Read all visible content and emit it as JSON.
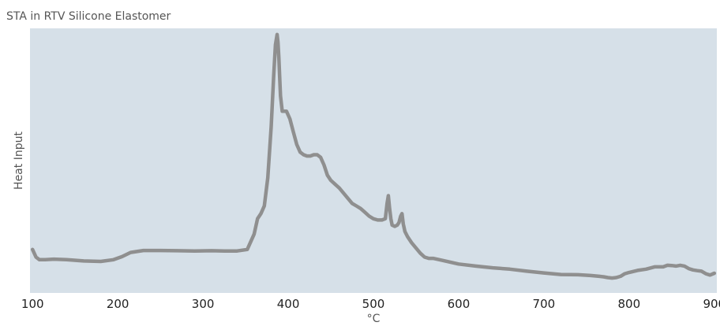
{
  "chart_data": {
    "type": "line",
    "title": "STA in RTV Silicone Elastomer",
    "xlabel": "°C",
    "ylabel": "Heat Input",
    "xlim": [
      97,
      903
    ],
    "ylim": [
      0,
      100
    ],
    "x_ticks": [
      100,
      200,
      300,
      400,
      500,
      600,
      700,
      800,
      900
    ],
    "y_ticks_shown": false,
    "grid": false,
    "plot_background": "#d6e0e8",
    "line_color": "#8f8f8f",
    "series": [
      {
        "x": [
          100,
          104,
          108,
          115,
          125,
          140,
          160,
          180,
          195,
          205,
          215,
          230,
          250,
          270,
          290,
          310,
          325,
          340,
          352,
          360,
          364,
          368,
          372,
          376,
          380,
          383,
          385,
          387,
          388,
          389,
          390,
          391,
          393,
          395,
          398,
          402,
          406,
          410,
          414,
          418,
          422,
          426,
          430,
          434,
          438,
          442,
          446,
          450,
          455,
          460,
          465,
          470,
          475,
          480,
          485,
          490,
          495,
          500,
          505,
          510,
          514,
          516,
          517.5,
          519,
          520.5,
          522,
          525,
          528,
          530,
          532,
          533.5,
          535,
          537,
          540,
          545,
          550,
          555,
          560,
          565,
          570,
          580,
          600,
          620,
          640,
          660,
          680,
          700,
          720,
          740,
          755,
          765,
          770,
          775,
          780,
          785,
          790,
          795,
          800,
          810,
          820,
          830,
          840,
          845,
          850,
          855,
          860,
          865,
          870,
          875,
          880,
          885,
          890,
          895,
          900
        ],
        "y": [
          17,
          14,
          13,
          13,
          13.2,
          13,
          12.5,
          12.3,
          13,
          14.2,
          15.8,
          16.6,
          16.6,
          16.5,
          16.4,
          16.5,
          16.4,
          16.4,
          17,
          23,
          29,
          31,
          34,
          45,
          65,
          85,
          97,
          101,
          98,
          92,
          84,
          77,
          71,
          71,
          71,
          68,
          63,
          58,
          55,
          54,
          53.5,
          53.5,
          54,
          54,
          53,
          50,
          46,
          44,
          42.5,
          41,
          39,
          37,
          35,
          34,
          33,
          31.5,
          30,
          29,
          28.5,
          28.5,
          29,
          35,
          38,
          33,
          29,
          26.5,
          26,
          26.5,
          27.5,
          30,
          31,
          27,
          24,
          22,
          19.5,
          17.5,
          15.5,
          14,
          13.5,
          13.5,
          12.8,
          11.3,
          10.5,
          9.8,
          9.3,
          8.5,
          7.8,
          7.2,
          7.1,
          6.8,
          6.5,
          6.3,
          6,
          5.8,
          6,
          6.5,
          7.5,
          8,
          8.8,
          9.3,
          10.2,
          10.2,
          10.8,
          10.7,
          10.5,
          10.8,
          10.5,
          9.5,
          9,
          8.7,
          8.5,
          7.5,
          7,
          7.7
        ]
      }
    ]
  }
}
